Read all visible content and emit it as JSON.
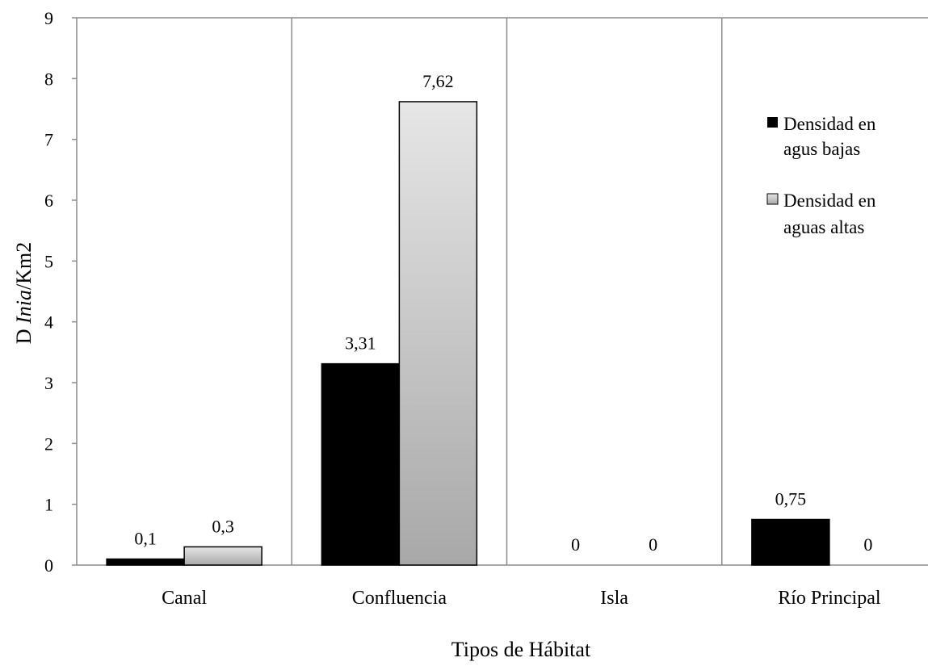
{
  "chart_data": {
    "type": "bar",
    "categories": [
      "Canal",
      "Confluencia",
      "Isla",
      "Río Principal"
    ],
    "series": [
      {
        "name": "Densidad en agus bajas",
        "legend_lines": [
          "Densidad en",
          "agus bajas"
        ],
        "values": [
          0.1,
          3.31,
          0,
          0.75
        ],
        "labels": [
          "0,1",
          "3,31",
          "0",
          "0,75"
        ],
        "color": "#000000"
      },
      {
        "name": "Densidad en aguas altas",
        "legend_lines": [
          "Densidad en",
          "aguas altas"
        ],
        "values": [
          0.3,
          7.62,
          0,
          0
        ],
        "labels": [
          "0,3",
          "7,62",
          "0",
          "0"
        ],
        "color_top": "#e6e6e6",
        "color_bottom": "#a8a8a8"
      }
    ],
    "ylim": [
      0,
      9
    ],
    "yticks": [
      0,
      1,
      2,
      3,
      4,
      5,
      6,
      7,
      8,
      9
    ],
    "xlabel": "Tipos de Hábitat",
    "ylabel_prefix": "D ",
    "ylabel_italic": "Inia",
    "ylabel_suffix": "/Km2",
    "title": "",
    "grid": false,
    "category_separators": true,
    "legend_position": "right"
  }
}
